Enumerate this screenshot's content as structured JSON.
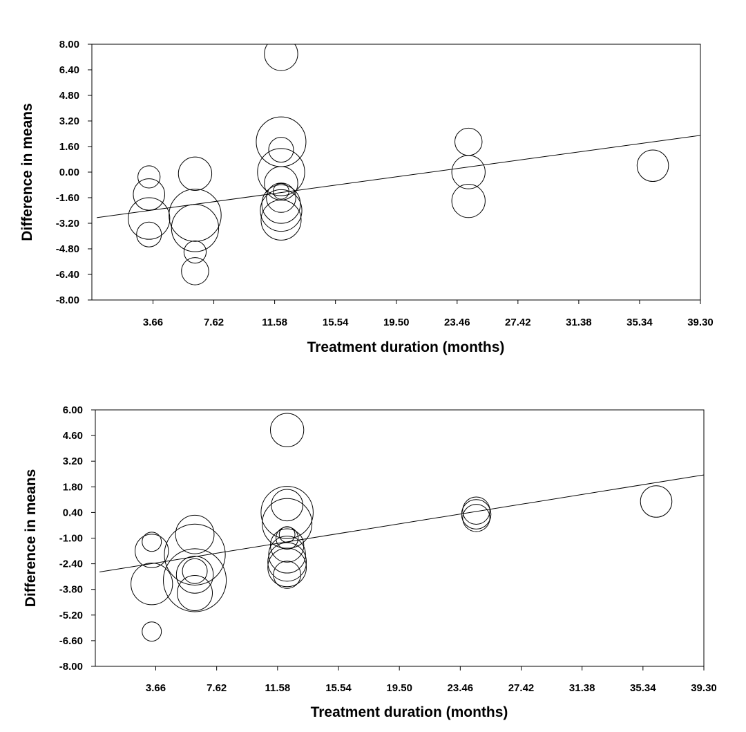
{
  "chart_data": [
    {
      "type": "scatter",
      "title": "",
      "xlabel": "Treatment duration (months)",
      "ylabel": "Difference in means",
      "xlim": [
        0,
        39.3
      ],
      "ylim": [
        -8.0,
        8.0
      ],
      "xticks": [
        "3.66",
        "7.62",
        "11.58",
        "15.54",
        "19.50",
        "23.46",
        "27.42",
        "31.38",
        "35.34",
        "39.30"
      ],
      "yticks": [
        "8.00",
        "6.40",
        "4.80",
        "3.20",
        "1.60",
        "0.00",
        "-1.60",
        "-3.20",
        "-4.80",
        "-6.40",
        "-8.00"
      ],
      "grid": false,
      "regression_line": {
        "x": [
          0,
          39.3
        ],
        "y": [
          -2.85,
          2.3
        ]
      },
      "points": [
        {
          "x": 3.4,
          "y": -0.3,
          "weight": 0.2
        },
        {
          "x": 3.4,
          "y": -1.4,
          "weight": 0.4
        },
        {
          "x": 3.4,
          "y": -2.9,
          "weight": 0.7
        },
        {
          "x": 3.4,
          "y": -3.9,
          "weight": 0.25
        },
        {
          "x": 6.4,
          "y": -0.1,
          "weight": 0.45
        },
        {
          "x": 6.4,
          "y": -2.7,
          "weight": 1.1
        },
        {
          "x": 6.4,
          "y": -3.5,
          "weight": 0.9
        },
        {
          "x": 6.4,
          "y": -5.0,
          "weight": 0.2
        },
        {
          "x": 6.4,
          "y": -6.2,
          "weight": 0.3
        },
        {
          "x": 12.0,
          "y": 7.4,
          "weight": 0.45
        },
        {
          "x": 12.0,
          "y": 1.9,
          "weight": 1.0
        },
        {
          "x": 12.0,
          "y": 1.4,
          "weight": 0.25
        },
        {
          "x": 12.0,
          "y": 0.0,
          "weight": 0.9
        },
        {
          "x": 12.0,
          "y": -0.7,
          "weight": 0.45
        },
        {
          "x": 12.0,
          "y": -1.2,
          "weight": 0.1
        },
        {
          "x": 12.0,
          "y": -1.6,
          "weight": 0.35
        },
        {
          "x": 12.0,
          "y": -2.0,
          "weight": 0.6
        },
        {
          "x": 12.0,
          "y": -2.4,
          "weight": 0.7
        },
        {
          "x": 12.0,
          "y": -3.0,
          "weight": 0.65
        },
        {
          "x": 24.2,
          "y": 1.9,
          "weight": 0.3
        },
        {
          "x": 24.2,
          "y": 0.0,
          "weight": 0.45
        },
        {
          "x": 24.2,
          "y": -1.8,
          "weight": 0.45
        },
        {
          "x": 36.2,
          "y": 0.4,
          "weight": 0.4
        }
      ]
    },
    {
      "type": "scatter",
      "title": "",
      "xlabel": "Treatment duration (months)",
      "ylabel": "Difference in means",
      "xlim": [
        0,
        39.3
      ],
      "ylim": [
        -8.0,
        6.0
      ],
      "xticks": [
        "3.66",
        "7.62",
        "11.58",
        "15.54",
        "19.50",
        "23.46",
        "27.42",
        "31.38",
        "35.34",
        "39.30"
      ],
      "yticks": [
        "6.00",
        "4.60",
        "3.20",
        "1.80",
        "0.40",
        "-1.00",
        "-2.40",
        "-3.80",
        "-5.20",
        "-6.60",
        "-8.00"
      ],
      "grid": false,
      "regression_line": {
        "x": [
          0,
          39.3
        ],
        "y": [
          -2.85,
          2.45
        ]
      },
      "points": [
        {
          "x": 3.4,
          "y": -1.2,
          "weight": 0.15
        },
        {
          "x": 3.4,
          "y": -1.7,
          "weight": 0.45
        },
        {
          "x": 3.4,
          "y": -3.5,
          "weight": 0.7
        },
        {
          "x": 3.4,
          "y": -6.1,
          "weight": 0.15
        },
        {
          "x": 6.2,
          "y": -0.8,
          "weight": 0.6
        },
        {
          "x": 6.2,
          "y": -1.9,
          "weight": 1.5
        },
        {
          "x": 6.2,
          "y": -2.8,
          "weight": 0.25
        },
        {
          "x": 6.2,
          "y": -3.0,
          "weight": 0.55
        },
        {
          "x": 6.2,
          "y": -3.3,
          "weight": 1.6
        },
        {
          "x": 6.2,
          "y": -4.0,
          "weight": 0.5
        },
        {
          "x": 12.2,
          "y": 4.9,
          "weight": 0.45
        },
        {
          "x": 12.2,
          "y": 0.8,
          "weight": 0.4
        },
        {
          "x": 12.2,
          "y": 0.4,
          "weight": 1.1
        },
        {
          "x": 12.2,
          "y": -0.2,
          "weight": 1.0
        },
        {
          "x": 12.2,
          "y": -0.8,
          "weight": 0.1
        },
        {
          "x": 12.2,
          "y": -1.0,
          "weight": 0.2
        },
        {
          "x": 12.2,
          "y": -1.4,
          "weight": 0.45
        },
        {
          "x": 12.2,
          "y": -1.9,
          "weight": 0.55
        },
        {
          "x": 12.2,
          "y": -2.3,
          "weight": 0.6
        },
        {
          "x": 12.2,
          "y": -2.6,
          "weight": 0.6
        },
        {
          "x": 12.2,
          "y": -3.0,
          "weight": 0.3
        },
        {
          "x": 24.5,
          "y": 0.5,
          "weight": 0.3
        },
        {
          "x": 24.5,
          "y": 0.3,
          "weight": 0.35
        },
        {
          "x": 24.5,
          "y": 0.1,
          "weight": 0.3
        },
        {
          "x": 36.2,
          "y": 1.0,
          "weight": 0.4
        }
      ]
    }
  ]
}
